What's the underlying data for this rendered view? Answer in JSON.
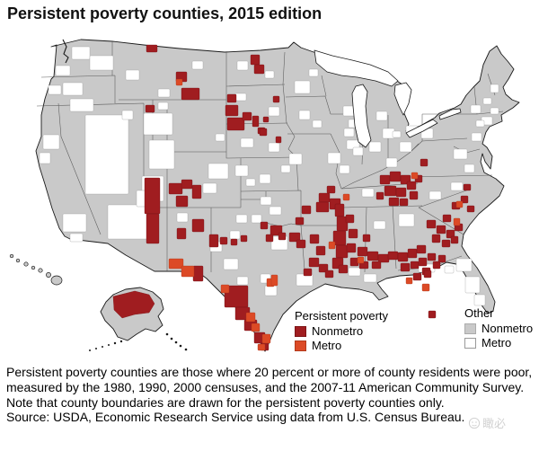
{
  "title": "Persistent poverty counties, 2015 edition",
  "legend": {
    "persistent_poverty": {
      "title": "Persistent poverty",
      "items": [
        {
          "label": "Nonmetro",
          "color": "#A01D20",
          "border": "#7d1416"
        },
        {
          "label": "Metro",
          "color": "#DC4A26",
          "border": "#b33a1c"
        }
      ]
    },
    "other": {
      "title": "Other",
      "items": [
        {
          "label": "Nonmetro",
          "color": "#C9C9C9",
          "border": "#ababab"
        },
        {
          "label": "Metro",
          "color": "#FFFFFF",
          "border": "#999999"
        }
      ]
    }
  },
  "notes": {
    "definition": "Persistent poverty counties are those where 20 percent or more of county residents were poor, measured by the 1980, 1990, 2000 censuses, and the 2007-11 American Community Survey.",
    "note": "Note that county boundaries are drawn for the persistent poverty counties only.",
    "source": "Source: USDA, Economic Research Service using data from U.S. Census Bureau."
  },
  "watermark": "瞰必",
  "map": {
    "colors": {
      "land": "#C9C9C9",
      "outline": "#1a1a1a",
      "state_line": "#4d4d4d",
      "nonmetro_pp": "#A01D20",
      "metro_pp": "#DC4A26",
      "metro_other": "#FFFFFF",
      "water": "#FFFFFF"
    },
    "counties_nonmetro_pp": [
      [
        163,
        50,
        12,
        8
      ],
      [
        196,
        80,
        12,
        11
      ],
      [
        202,
        98,
        20,
        13
      ],
      [
        162,
        117,
        10,
        8
      ],
      [
        279,
        61,
        10,
        11
      ],
      [
        283,
        72,
        11,
        10
      ],
      [
        304,
        107,
        7,
        7
      ],
      [
        253,
        105,
        10,
        9
      ],
      [
        251,
        117,
        14,
        12
      ],
      [
        253,
        131,
        19,
        14
      ],
      [
        270,
        125,
        10,
        9
      ],
      [
        281,
        129,
        7,
        12
      ],
      [
        287,
        142,
        8,
        7
      ],
      [
        293,
        130,
        6,
        6
      ],
      [
        289,
        143,
        8,
        8
      ],
      [
        307,
        152,
        6,
        7
      ],
      [
        161,
        198,
        17,
        40
      ],
      [
        163,
        238,
        14,
        33
      ],
      [
        188,
        204,
        15,
        12
      ],
      [
        202,
        200,
        12,
        10
      ],
      [
        214,
        206,
        10,
        15
      ],
      [
        196,
        218,
        13,
        12
      ],
      [
        214,
        244,
        13,
        14
      ],
      [
        197,
        254,
        10,
        12
      ],
      [
        233,
        261,
        10,
        14
      ],
      [
        215,
        296,
        11,
        17
      ],
      [
        245,
        264,
        8,
        8
      ],
      [
        257,
        266,
        7,
        7
      ],
      [
        268,
        262,
        7,
        7
      ],
      [
        250,
        318,
        26,
        24
      ],
      [
        262,
        342,
        16,
        14
      ],
      [
        272,
        356,
        14,
        12
      ],
      [
        283,
        370,
        12,
        12
      ],
      [
        290,
        382,
        9,
        8
      ],
      [
        301,
        251,
        13,
        11
      ],
      [
        290,
        247,
        8,
        8
      ],
      [
        296,
        261,
        8,
        8
      ],
      [
        310,
        259,
        8,
        8
      ],
      [
        355,
        215,
        12,
        10
      ],
      [
        364,
        207,
        9,
        8
      ],
      [
        352,
        225,
        14,
        11
      ],
      [
        367,
        221,
        12,
        12
      ],
      [
        336,
        229,
        10,
        9
      ],
      [
        329,
        242,
        9,
        8
      ],
      [
        322,
        259,
        12,
        10
      ],
      [
        330,
        267,
        10,
        9
      ],
      [
        373,
        227,
        10,
        14
      ],
      [
        375,
        241,
        12,
        16
      ],
      [
        371,
        257,
        14,
        16
      ],
      [
        374,
        273,
        13,
        14
      ],
      [
        370,
        287,
        12,
        12
      ],
      [
        377,
        295,
        10,
        9
      ],
      [
        345,
        261,
        10,
        10
      ],
      [
        352,
        274,
        10,
        10
      ],
      [
        344,
        287,
        11,
        10
      ],
      [
        355,
        294,
        10,
        9
      ],
      [
        338,
        299,
        9,
        8
      ],
      [
        362,
        301,
        9,
        8
      ],
      [
        385,
        239,
        9,
        9
      ],
      [
        388,
        255,
        10,
        10
      ],
      [
        386,
        271,
        10,
        10
      ],
      [
        390,
        287,
        9,
        9
      ],
      [
        398,
        275,
        11,
        10
      ],
      [
        409,
        280,
        12,
        10
      ],
      [
        421,
        283,
        12,
        9
      ],
      [
        432,
        280,
        11,
        9
      ],
      [
        400,
        291,
        10,
        8
      ],
      [
        414,
        291,
        10,
        8
      ],
      [
        404,
        261,
        8,
        8
      ],
      [
        443,
        281,
        11,
        10
      ],
      [
        454,
        277,
        10,
        10
      ],
      [
        464,
        273,
        10,
        9
      ],
      [
        446,
        293,
        10,
        9
      ],
      [
        457,
        291,
        9,
        8
      ],
      [
        466,
        287,
        9,
        9
      ],
      [
        476,
        282,
        9,
        8
      ],
      [
        470,
        298,
        9,
        8
      ],
      [
        482,
        291,
        8,
        8
      ],
      [
        488,
        284,
        8,
        8
      ],
      [
        460,
        304,
        9,
        8
      ],
      [
        472,
        301,
        8,
        8
      ],
      [
        477,
        346,
        8,
        8
      ],
      [
        475,
        245,
        10,
        9
      ],
      [
        486,
        251,
        10,
        9
      ],
      [
        497,
        256,
        9,
        9
      ],
      [
        506,
        249,
        9,
        8
      ],
      [
        493,
        239,
        9,
        8
      ],
      [
        481,
        261,
        9,
        9
      ],
      [
        492,
        267,
        9,
        8
      ],
      [
        502,
        263,
        8,
        8
      ],
      [
        503,
        225,
        9,
        8
      ],
      [
        513,
        218,
        8,
        8
      ],
      [
        520,
        229,
        8,
        7
      ],
      [
        516,
        205,
        8,
        7
      ],
      [
        423,
        195,
        11,
        10
      ],
      [
        434,
        191,
        12,
        11
      ],
      [
        446,
        195,
        11,
        10
      ],
      [
        428,
        207,
        13,
        11
      ],
      [
        441,
        209,
        11,
        10
      ],
      [
        453,
        202,
        10,
        9
      ],
      [
        433,
        220,
        11,
        9
      ],
      [
        445,
        221,
        9,
        8
      ],
      [
        456,
        213,
        9,
        9
      ],
      [
        462,
        195,
        8,
        8
      ],
      [
        419,
        214,
        8,
        8
      ],
      [
        468,
        177,
        8,
        8
      ]
    ],
    "counties_metro_pp": [
      [
        196,
        88,
        7,
        7
      ],
      [
        188,
        288,
        16,
        11
      ],
      [
        202,
        296,
        14,
        12
      ],
      [
        246,
        317,
        9,
        9
      ],
      [
        274,
        348,
        10,
        10
      ],
      [
        280,
        360,
        9,
        9
      ],
      [
        292,
        372,
        9,
        10
      ],
      [
        287,
        383,
        8,
        7
      ],
      [
        297,
        310,
        8,
        9
      ],
      [
        302,
        306,
        7,
        12
      ],
      [
        382,
        216,
        7,
        7
      ],
      [
        366,
        269,
        7,
        8
      ],
      [
        398,
        286,
        7,
        7
      ],
      [
        470,
        316,
        8,
        8
      ],
      [
        452,
        309,
        7,
        7
      ],
      [
        505,
        243,
        7,
        8
      ],
      [
        508,
        224,
        7,
        7
      ],
      [
        458,
        192,
        7,
        7
      ]
    ],
    "counties_metro_other": [
      [
        62,
        73,
        16,
        11
      ],
      [
        80,
        52,
        20,
        14
      ],
      [
        100,
        62,
        26,
        16
      ],
      [
        54,
        95,
        14,
        10
      ],
      [
        70,
        92,
        22,
        14
      ],
      [
        78,
        110,
        26,
        14
      ],
      [
        48,
        150,
        18,
        16
      ],
      [
        44,
        170,
        12,
        12
      ],
      [
        70,
        238,
        26,
        20
      ],
      [
        78,
        260,
        14,
        9
      ],
      [
        95,
        128,
        48,
        88
      ],
      [
        160,
        126,
        32,
        24
      ],
      [
        166,
        156,
        28,
        32
      ],
      [
        158,
        196,
        24,
        28
      ],
      [
        120,
        228,
        48,
        38
      ],
      [
        152,
        212,
        22,
        18
      ],
      [
        197,
        237,
        12,
        10
      ],
      [
        232,
        182,
        22,
        17
      ],
      [
        226,
        204,
        15,
        11
      ],
      [
        140,
        78,
        15,
        11
      ],
      [
        176,
        99,
        13,
        9
      ],
      [
        214,
        68,
        12,
        9
      ],
      [
        136,
        123,
        12,
        10
      ],
      [
        176,
        114,
        11,
        8
      ],
      [
        240,
        149,
        10,
        8
      ],
      [
        264,
        68,
        12,
        10
      ],
      [
        295,
        79,
        10,
        8
      ],
      [
        262,
        104,
        12,
        8
      ],
      [
        299,
        119,
        12,
        10
      ],
      [
        268,
        154,
        14,
        10
      ],
      [
        299,
        159,
        12,
        10
      ],
      [
        262,
        184,
        14,
        12
      ],
      [
        289,
        194,
        12,
        10
      ],
      [
        313,
        184,
        10,
        8
      ],
      [
        274,
        199,
        10,
        8
      ],
      [
        290,
        219,
        12,
        9
      ],
      [
        300,
        230,
        13,
        9
      ],
      [
        280,
        239,
        11,
        9
      ],
      [
        302,
        263,
        18,
        15
      ],
      [
        330,
        305,
        18,
        13
      ],
      [
        290,
        305,
        11,
        10
      ],
      [
        295,
        318,
        13,
        11
      ],
      [
        264,
        308,
        12,
        9
      ],
      [
        263,
        239,
        12,
        9
      ],
      [
        256,
        257,
        11,
        9
      ],
      [
        249,
        288,
        16,
        12
      ],
      [
        234,
        269,
        13,
        11
      ],
      [
        328,
        90,
        17,
        14
      ],
      [
        344,
        77,
        10,
        8
      ],
      [
        382,
        118,
        14,
        11
      ],
      [
        388,
        133,
        11,
        9
      ],
      [
        386,
        156,
        14,
        10
      ],
      [
        419,
        124,
        12,
        10
      ],
      [
        426,
        143,
        13,
        11
      ],
      [
        437,
        146,
        9,
        7
      ],
      [
        333,
        123,
        12,
        10
      ],
      [
        348,
        134,
        10,
        8
      ],
      [
        365,
        170,
        14,
        12
      ],
      [
        322,
        171,
        14,
        12
      ],
      [
        383,
        143,
        11,
        9
      ],
      [
        393,
        164,
        11,
        9
      ],
      [
        378,
        184,
        11,
        9
      ],
      [
        411,
        158,
        13,
        11
      ],
      [
        430,
        176,
        12,
        10
      ],
      [
        445,
        158,
        13,
        11
      ],
      [
        452,
        140,
        13,
        9
      ],
      [
        469,
        143,
        13,
        11
      ],
      [
        403,
        210,
        13,
        9
      ],
      [
        416,
        246,
        13,
        9
      ],
      [
        444,
        238,
        17,
        14
      ],
      [
        478,
        213,
        13,
        9
      ],
      [
        502,
        203,
        13,
        9
      ],
      [
        517,
        183,
        11,
        9
      ],
      [
        505,
        166,
        15,
        11
      ],
      [
        525,
        148,
        11,
        9
      ],
      [
        536,
        130,
        12,
        9
      ],
      [
        388,
        298,
        13,
        9
      ],
      [
        405,
        305,
        14,
        9
      ],
      [
        508,
        288,
        17,
        14
      ],
      [
        518,
        308,
        16,
        18
      ],
      [
        528,
        328,
        12,
        12
      ],
      [
        466,
        294,
        18,
        9
      ],
      [
        495,
        296,
        10,
        8
      ],
      [
        524,
        117,
        11,
        9
      ],
      [
        538,
        109,
        9,
        7
      ],
      [
        546,
        94,
        9,
        9
      ],
      [
        530,
        134,
        9,
        7
      ],
      [
        546,
        120,
        9,
        7
      ],
      [
        152,
        336,
        12,
        9
      ]
    ]
  }
}
